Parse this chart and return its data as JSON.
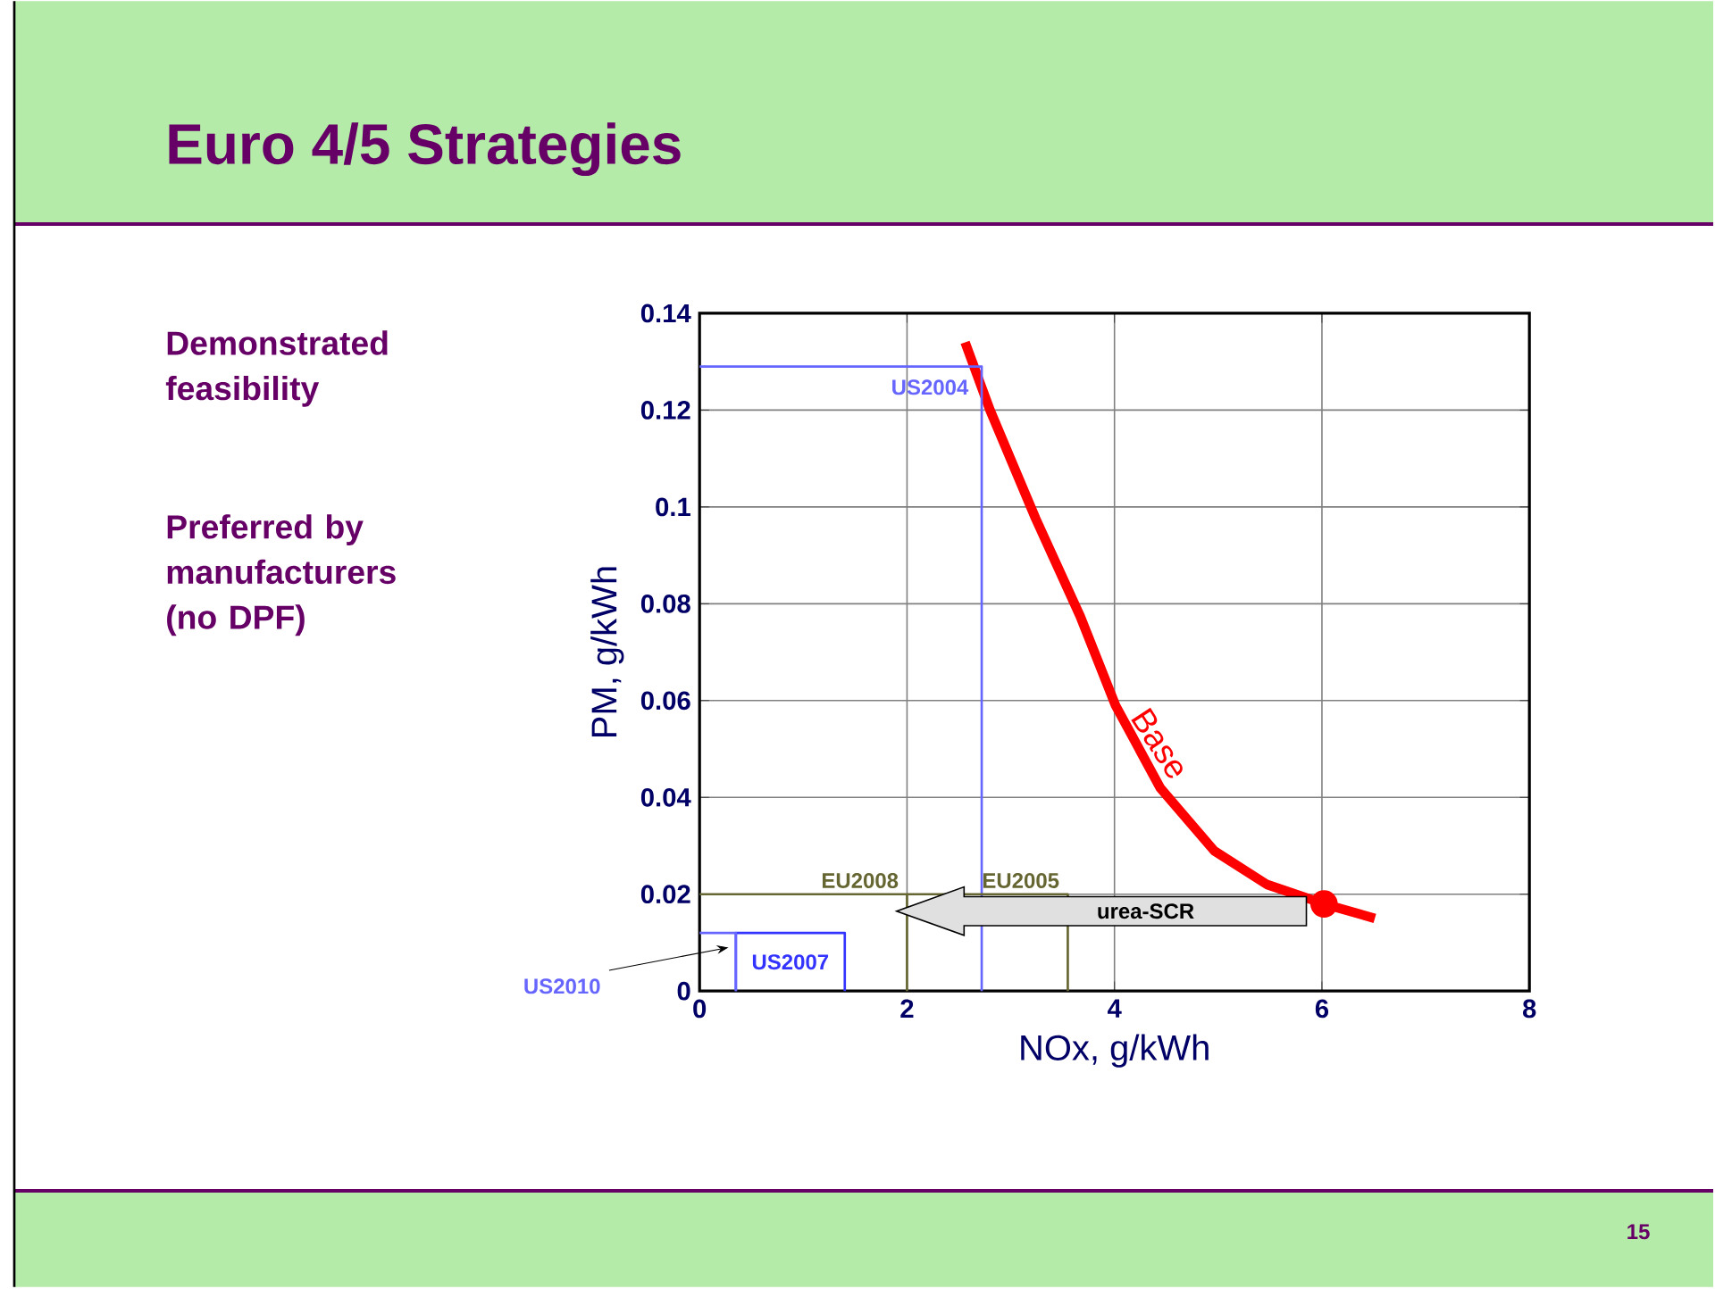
{
  "chart_data": {
    "type": "line",
    "title": "Euro 4/5 Strategies",
    "xlabel": "NOx, g/kWh",
    "ylabel": "PM, g/kWh",
    "xlim": [
      0,
      8
    ],
    "ylim": [
      0,
      0.14
    ],
    "xticks": [
      0,
      2,
      4,
      6,
      8
    ],
    "yticks": [
      0,
      0.02,
      0.04,
      0.06,
      0.08,
      0.1,
      0.12,
      0.14
    ],
    "grid": true,
    "series": [
      {
        "name": "Base",
        "color": "#ff0000",
        "x": [
          2.56,
          2.8,
          3.24,
          3.67,
          4.01,
          4.44,
          4.96,
          5.47,
          6.02,
          6.51
        ],
        "values": [
          0.134,
          0.12,
          0.0976,
          0.0774,
          0.059,
          0.042,
          0.029,
          0.022,
          0.018,
          0.015
        ]
      },
      {
        "name": "US2004",
        "color": "#6666ff",
        "x": [
          0,
          2.72,
          2.72
        ],
        "values": [
          0.129,
          0.129,
          0
        ]
      },
      {
        "name": "US2007",
        "color": "#3333ff",
        "x": [
          0.35,
          0.35,
          1.4,
          1.4
        ],
        "values": [
          0,
          0.012,
          0.012,
          0
        ]
      },
      {
        "name": "US2010",
        "color": "#6666ff",
        "x": [
          0,
          0.35,
          0.35
        ],
        "values": [
          0.012,
          0.012,
          0
        ]
      },
      {
        "name": "EU2008",
        "color": "#666633",
        "x": [
          0,
          2,
          2
        ],
        "values": [
          0.02,
          0.02,
          0
        ]
      },
      {
        "name": "EU2005",
        "color": "#666633",
        "x": [
          2,
          3.55,
          3.55
        ],
        "values": [
          0.02,
          0.02,
          0
        ]
      },
      {
        "type": "scatter",
        "marker": "circle",
        "color": "#ff0000",
        "x": [
          6.02
        ],
        "values": [
          0.018
        ]
      }
    ],
    "annotations": [
      "Demonstrated feasibility",
      "Preferred by manufacturers (no DPF)",
      "urea-SCR",
      "15"
    ]
  }
}
